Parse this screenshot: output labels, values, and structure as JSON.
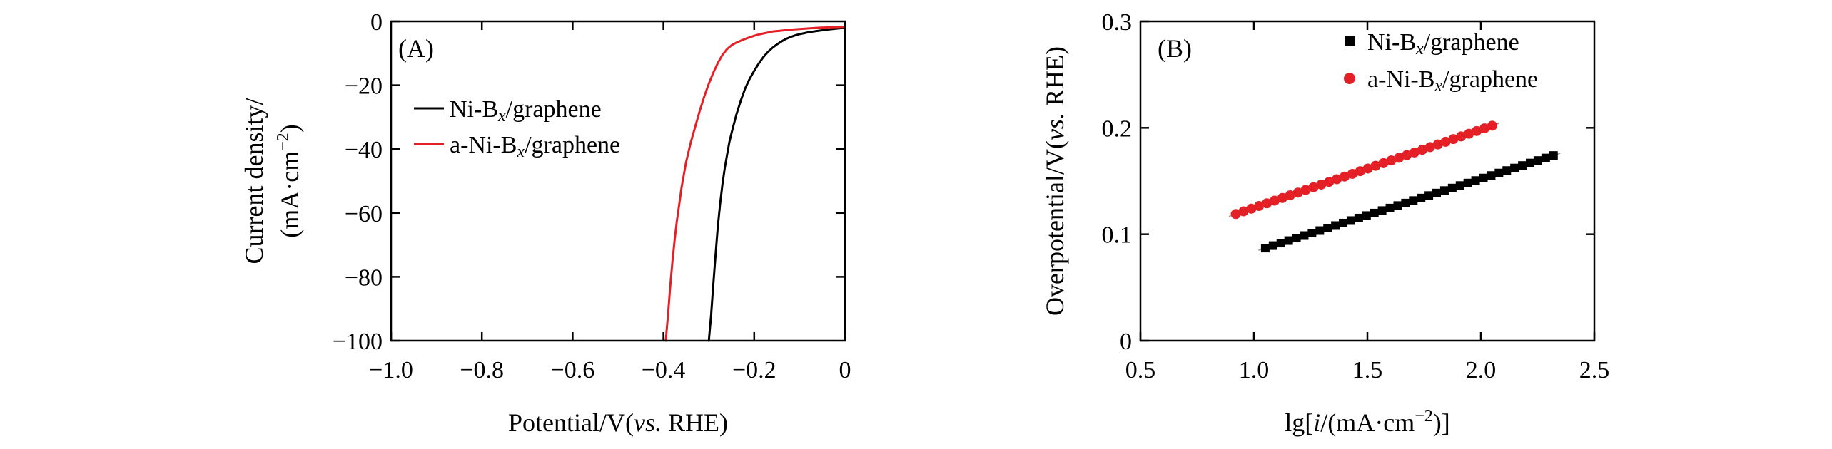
{
  "chart_data": [
    {
      "type": "line",
      "panel_label": "(A)",
      "xlabel": "Potential/V(vs. RHE)",
      "ylabel_line1": "Current density/",
      "ylabel_line2": "(mA·cm−2)",
      "xlim": [
        -1.0,
        0
      ],
      "ylim": [
        -100,
        0
      ],
      "xticks": [
        "−1.0",
        "−0.8",
        "−0.6",
        "−0.4",
        "−0.2",
        "0"
      ],
      "yticks": [
        "0",
        "−20",
        "−40",
        "−60",
        "−80",
        "−100"
      ],
      "legend_position": "center-left",
      "series": [
        {
          "name": "Ni-Bx/graphene",
          "color": "#000000",
          "x": [
            -0.3,
            -0.295,
            -0.29,
            -0.285,
            -0.28,
            -0.275,
            -0.27,
            -0.265,
            -0.26,
            -0.255,
            -0.25,
            -0.24,
            -0.23,
            -0.22,
            -0.21,
            -0.2,
            -0.19,
            -0.18,
            -0.17,
            -0.16,
            -0.15,
            -0.14,
            -0.13,
            -0.12,
            -0.11,
            -0.1,
            -0.09,
            -0.08,
            -0.06,
            -0.04,
            -0.02,
            0.0
          ],
          "y": [
            -100,
            -92,
            -82,
            -73,
            -64,
            -57,
            -51,
            -46,
            -42,
            -38,
            -35,
            -29.5,
            -25,
            -21,
            -18,
            -15.5,
            -13.2,
            -11.2,
            -9.6,
            -8.3,
            -7.2,
            -6.3,
            -5.5,
            -4.9,
            -4.4,
            -4.0,
            -3.7,
            -3.4,
            -3.0,
            -2.6,
            -2.3,
            -2.0
          ]
        },
        {
          "name": "a-Ni-Bx/graphene",
          "color": "#e41f26",
          "x": [
            -0.395,
            -0.39,
            -0.385,
            -0.38,
            -0.375,
            -0.37,
            -0.365,
            -0.36,
            -0.355,
            -0.35,
            -0.345,
            -0.34,
            -0.33,
            -0.32,
            -0.31,
            -0.3,
            -0.29,
            -0.28,
            -0.27,
            -0.26,
            -0.25,
            -0.24,
            -0.23,
            -0.22,
            -0.21,
            -0.2,
            -0.19,
            -0.18,
            -0.17,
            -0.16,
            -0.14,
            -0.12,
            -0.1,
            -0.08,
            -0.06,
            -0.04,
            -0.02,
            0.0
          ],
          "y": [
            -100,
            -92,
            -83,
            -75,
            -68,
            -62,
            -57,
            -52,
            -48,
            -44,
            -41,
            -38,
            -33,
            -28,
            -23.5,
            -19.5,
            -16,
            -13,
            -10.5,
            -8.7,
            -7.5,
            -6.7,
            -6.1,
            -5.5,
            -5.0,
            -4.5,
            -4.1,
            -3.8,
            -3.5,
            -3.2,
            -2.9,
            -2.6,
            -2.4,
            -2.2,
            -2.0,
            -1.9,
            -1.8,
            -1.7
          ]
        }
      ]
    },
    {
      "type": "scatter",
      "panel_label": "(B)",
      "xlabel": "lg[i/(mA·cm−2)]",
      "ylabel": "Overpotential/V(vs. RHE)",
      "xlim": [
        0.5,
        2.5
      ],
      "ylim": [
        0,
        0.3
      ],
      "xticks": [
        "0.5",
        "1.0",
        "1.5",
        "2.0",
        "2.5"
      ],
      "yticks": [
        "0",
        "0.1",
        "0.2",
        "0.3"
      ],
      "legend_position": "top-right",
      "series": [
        {
          "name": "Ni-Bx/graphene",
          "color": "#000000",
          "marker": "square",
          "x_start": 1.05,
          "x_end": 2.32,
          "y_start": 0.087,
          "y_end": 0.174,
          "n_points": 38
        },
        {
          "name": "a-Ni-Bx/graphene",
          "color": "#e41f26",
          "marker": "circle",
          "x_start": 0.92,
          "x_end": 2.05,
          "y_start": 0.119,
          "y_end": 0.202,
          "n_points": 34
        }
      ]
    }
  ]
}
